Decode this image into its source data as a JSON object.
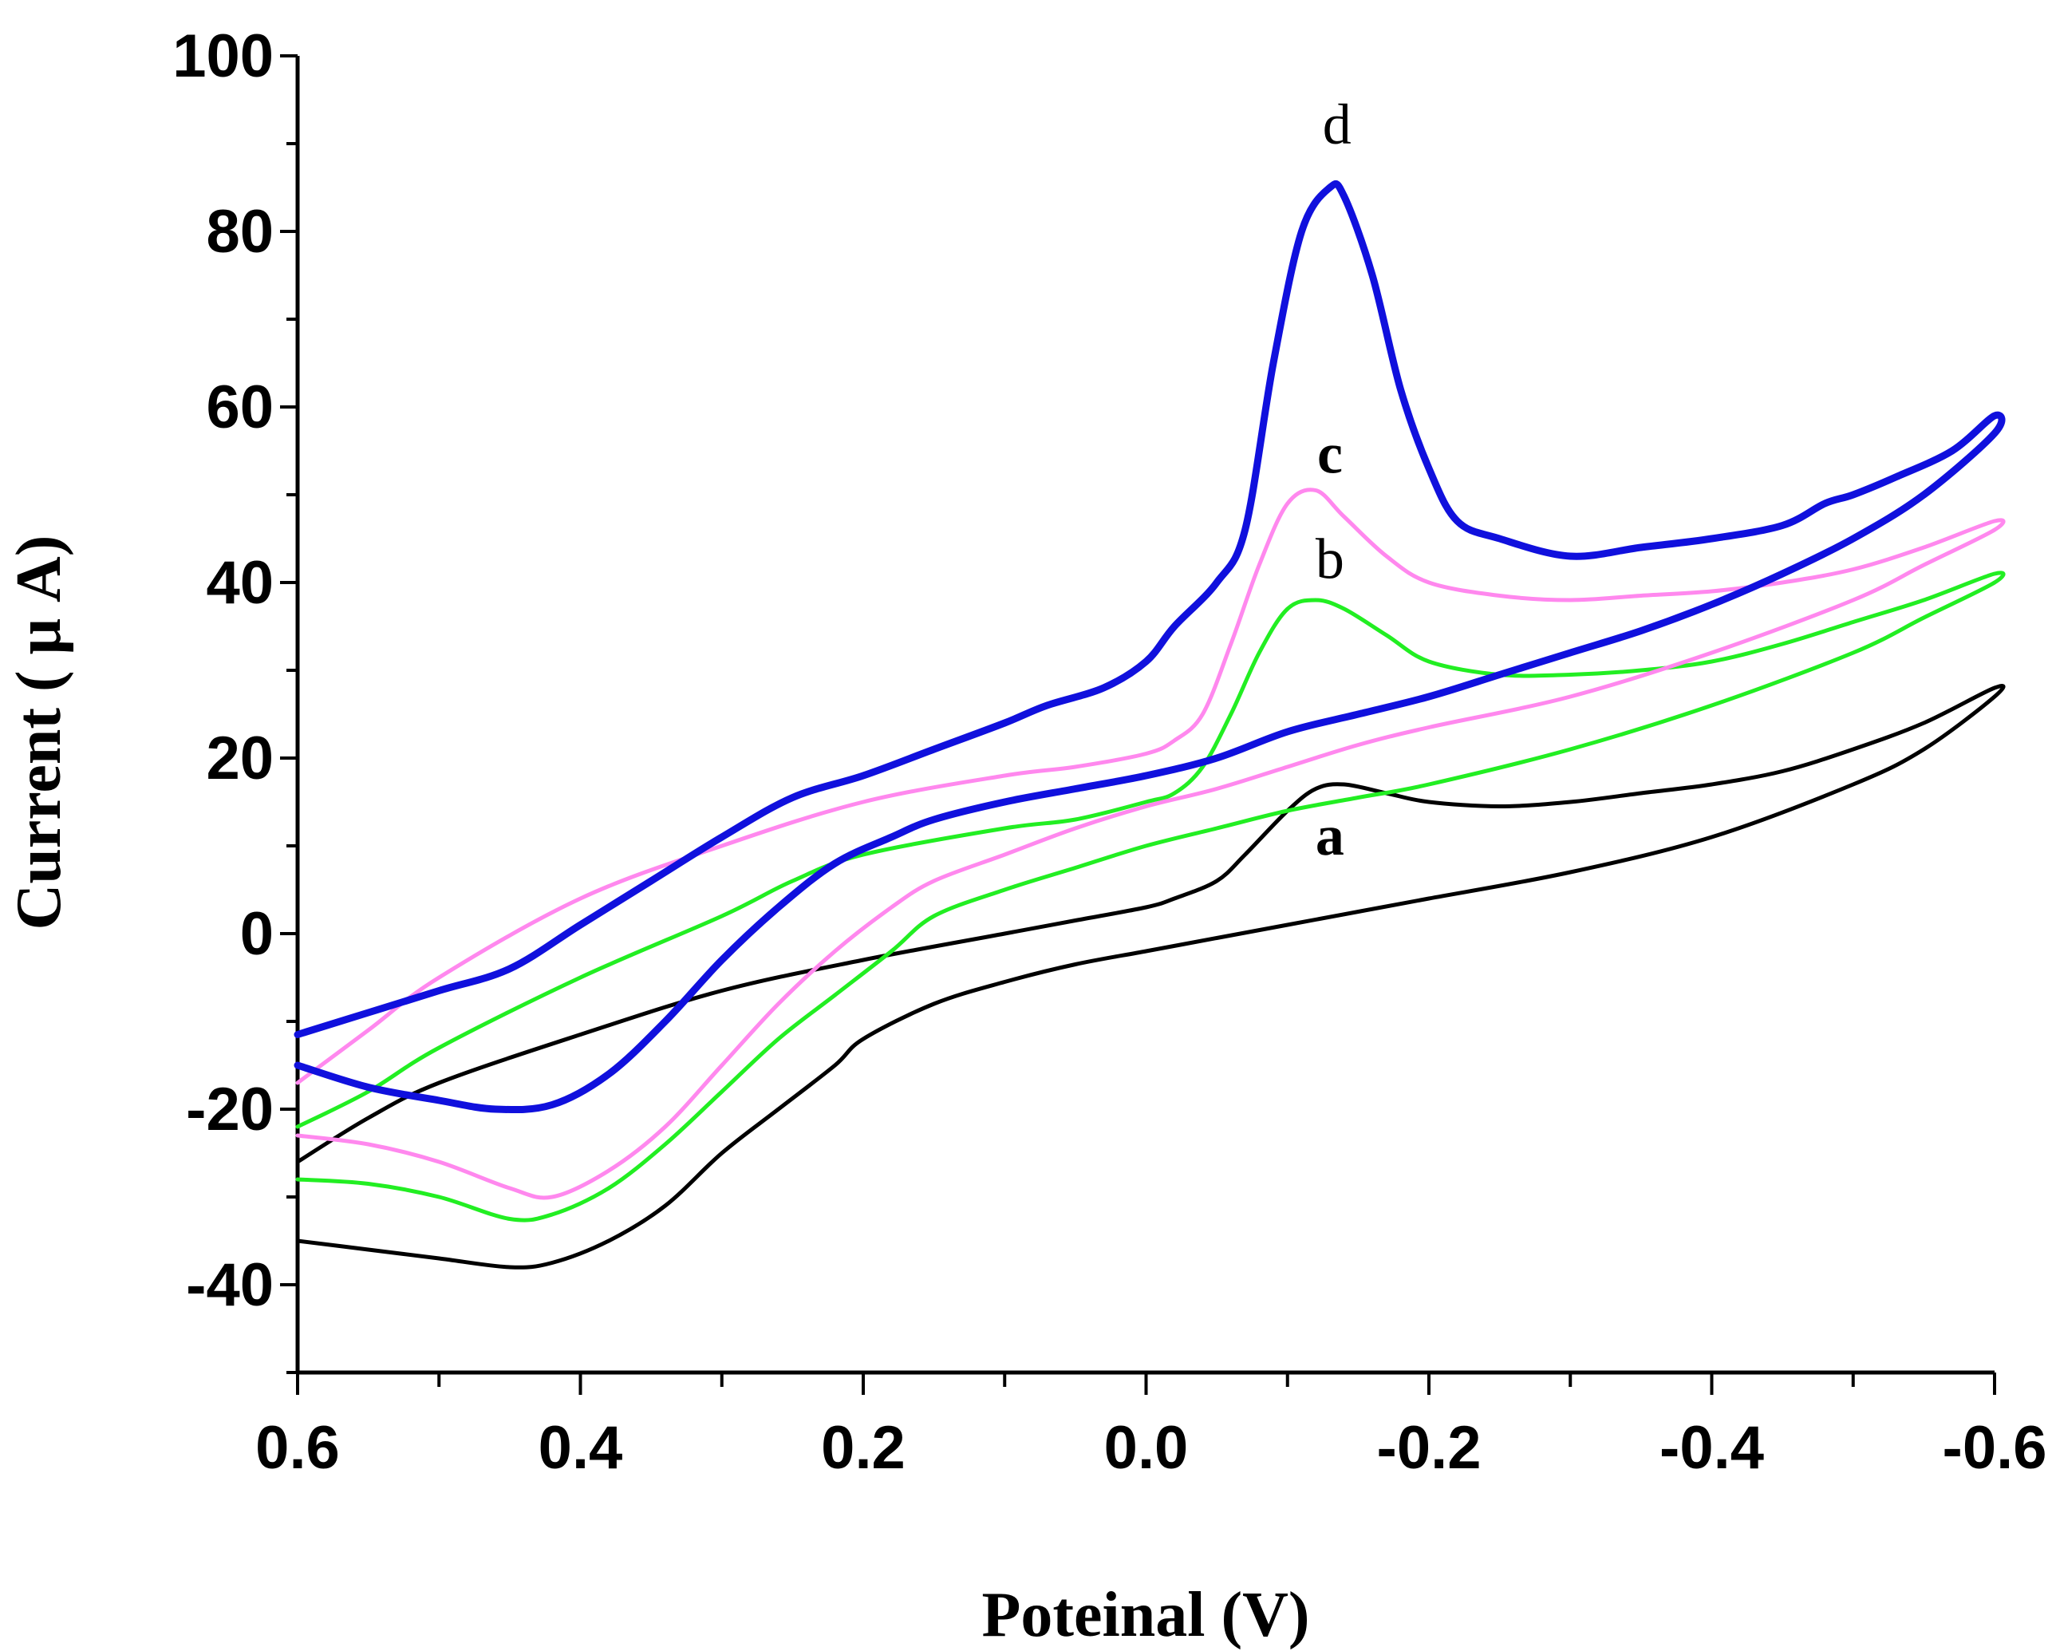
{
  "chart_data": {
    "type": "line",
    "title": "",
    "xlabel": "Poteinal (V)",
    "ylabel": "Current ( μ A)",
    "xlim": [
      0.6,
      -0.6
    ],
    "ylim": [
      -50,
      100
    ],
    "xticks": [
      0.6,
      0.4,
      0.2,
      0.0,
      -0.2,
      -0.4,
      -0.6
    ],
    "xtick_labels": [
      "0.6",
      "0.4",
      "0.2",
      "0.0",
      "-0.2",
      "-0.4",
      "-0.6"
    ],
    "yticks": [
      -40,
      -20,
      0,
      20,
      40,
      60,
      80,
      100
    ],
    "ytick_labels": [
      "-40",
      "-20",
      "0",
      "20",
      "40",
      "60",
      "80",
      "100"
    ],
    "grid": false,
    "series": [
      {
        "name": "a",
        "label": "a",
        "label_pos": [
          -0.13,
          9
        ],
        "bold_label": true,
        "color": "#000000",
        "width": 5,
        "points": [
          [
            0.6,
            -35
          ],
          [
            0.55,
            -36
          ],
          [
            0.5,
            -37
          ],
          [
            0.45,
            -38
          ],
          [
            0.42,
            -37.5
          ],
          [
            0.38,
            -35
          ],
          [
            0.34,
            -31
          ],
          [
            0.3,
            -25
          ],
          [
            0.26,
            -20
          ],
          [
            0.22,
            -15
          ],
          [
            0.2,
            -12
          ],
          [
            0.15,
            -8
          ],
          [
            0.1,
            -5.5
          ],
          [
            0.05,
            -3.5
          ],
          [
            0.0,
            -2
          ],
          [
            -0.05,
            -0.5
          ],
          [
            -0.1,
            1
          ],
          [
            -0.15,
            2.5
          ],
          [
            -0.2,
            4
          ],
          [
            -0.3,
            7
          ],
          [
            -0.4,
            11
          ],
          [
            -0.5,
            17
          ],
          [
            -0.55,
            21
          ],
          [
            -0.6,
            27
          ],
          [
            -0.6,
            28
          ],
          [
            -0.55,
            24
          ],
          [
            -0.5,
            21
          ],
          [
            -0.45,
            18.5
          ],
          [
            -0.4,
            17
          ],
          [
            -0.35,
            16
          ],
          [
            -0.3,
            15
          ],
          [
            -0.25,
            14.5
          ],
          [
            -0.2,
            15
          ],
          [
            -0.17,
            16
          ],
          [
            -0.14,
            17
          ],
          [
            -0.12,
            16.5
          ],
          [
            -0.1,
            14
          ],
          [
            -0.07,
            9
          ],
          [
            -0.05,
            6
          ],
          [
            -0.02,
            4
          ],
          [
            0.0,
            3
          ],
          [
            0.05,
            1.5
          ],
          [
            0.1,
            0
          ],
          [
            0.2,
            -3
          ],
          [
            0.3,
            -6.5
          ],
          [
            0.4,
            -11.5
          ],
          [
            0.5,
            -17
          ],
          [
            0.55,
            -21
          ],
          [
            0.6,
            -26
          ]
        ]
      },
      {
        "name": "b",
        "label": "b",
        "label_pos": [
          -0.13,
          40.5
        ],
        "bold_label": false,
        "color": "#22ee22",
        "width": 5,
        "points": [
          [
            0.6,
            -28
          ],
          [
            0.55,
            -28.5
          ],
          [
            0.5,
            -30
          ],
          [
            0.45,
            -32.5
          ],
          [
            0.42,
            -32
          ],
          [
            0.38,
            -29
          ],
          [
            0.34,
            -24
          ],
          [
            0.3,
            -18
          ],
          [
            0.26,
            -12
          ],
          [
            0.22,
            -7
          ],
          [
            0.18,
            -2
          ],
          [
            0.15,
            2
          ],
          [
            0.1,
            5
          ],
          [
            0.05,
            7.5
          ],
          [
            0.0,
            10
          ],
          [
            -0.05,
            12
          ],
          [
            -0.1,
            14
          ],
          [
            -0.15,
            15.5
          ],
          [
            -0.2,
            17
          ],
          [
            -0.3,
            21
          ],
          [
            -0.4,
            26
          ],
          [
            -0.5,
            32
          ],
          [
            -0.55,
            36
          ],
          [
            -0.6,
            40
          ],
          [
            -0.6,
            41
          ],
          [
            -0.55,
            38
          ],
          [
            -0.5,
            35.5
          ],
          [
            -0.45,
            33
          ],
          [
            -0.4,
            31
          ],
          [
            -0.35,
            30
          ],
          [
            -0.3,
            29.5
          ],
          [
            -0.25,
            29.5
          ],
          [
            -0.2,
            31
          ],
          [
            -0.17,
            34
          ],
          [
            -0.14,
            37
          ],
          [
            -0.12,
            38
          ],
          [
            -0.1,
            37
          ],
          [
            -0.08,
            32
          ],
          [
            -0.06,
            25
          ],
          [
            -0.04,
            19
          ],
          [
            -0.02,
            16
          ],
          [
            0.0,
            15
          ],
          [
            0.05,
            13
          ],
          [
            0.1,
            12
          ],
          [
            0.2,
            9
          ],
          [
            0.25,
            6
          ],
          [
            0.3,
            2
          ],
          [
            0.4,
            -5
          ],
          [
            0.5,
            -13
          ],
          [
            0.55,
            -18
          ],
          [
            0.6,
            -22
          ]
        ]
      },
      {
        "name": "c",
        "label": "c",
        "label_pos": [
          -0.13,
          52.5
        ],
        "bold_label": true,
        "color": "#ff88ee",
        "width": 5,
        "points": [
          [
            0.6,
            -23
          ],
          [
            0.55,
            -24
          ],
          [
            0.5,
            -26
          ],
          [
            0.45,
            -29
          ],
          [
            0.42,
            -30
          ],
          [
            0.38,
            -27
          ],
          [
            0.34,
            -22
          ],
          [
            0.3,
            -15
          ],
          [
            0.26,
            -8
          ],
          [
            0.22,
            -2
          ],
          [
            0.18,
            3
          ],
          [
            0.15,
            6
          ],
          [
            0.1,
            9
          ],
          [
            0.05,
            12
          ],
          [
            0.0,
            14.5
          ],
          [
            -0.05,
            16.5
          ],
          [
            -0.1,
            19
          ],
          [
            -0.15,
            21.5
          ],
          [
            -0.2,
            23.5
          ],
          [
            -0.3,
            27
          ],
          [
            -0.4,
            32
          ],
          [
            -0.5,
            38
          ],
          [
            -0.55,
            42
          ],
          [
            -0.6,
            46
          ],
          [
            -0.6,
            47
          ],
          [
            -0.55,
            44
          ],
          [
            -0.5,
            41.5
          ],
          [
            -0.45,
            40
          ],
          [
            -0.4,
            39
          ],
          [
            -0.35,
            38.5
          ],
          [
            -0.3,
            38
          ],
          [
            -0.25,
            38.5
          ],
          [
            -0.2,
            40
          ],
          [
            -0.17,
            43
          ],
          [
            -0.14,
            47.5
          ],
          [
            -0.12,
            50.5
          ],
          [
            -0.1,
            49
          ],
          [
            -0.08,
            42
          ],
          [
            -0.06,
            33
          ],
          [
            -0.04,
            25
          ],
          [
            -0.02,
            22
          ],
          [
            0.0,
            20.5
          ],
          [
            0.05,
            19
          ],
          [
            0.1,
            18
          ],
          [
            0.2,
            15
          ],
          [
            0.3,
            10
          ],
          [
            0.4,
            4
          ],
          [
            0.5,
            -5
          ],
          [
            0.55,
            -11
          ],
          [
            0.6,
            -17
          ]
        ]
      },
      {
        "name": "d",
        "label": "d",
        "label_pos": [
          -0.135,
          90
        ],
        "bold_label": false,
        "color": "#1010dd",
        "width": 9,
        "points": [
          [
            0.6,
            -15
          ],
          [
            0.55,
            -17.5
          ],
          [
            0.5,
            -19
          ],
          [
            0.46,
            -20
          ],
          [
            0.42,
            -19.5
          ],
          [
            0.38,
            -16
          ],
          [
            0.34,
            -10
          ],
          [
            0.3,
            -3
          ],
          [
            0.26,
            3
          ],
          [
            0.22,
            8
          ],
          [
            0.18,
            11
          ],
          [
            0.15,
            13
          ],
          [
            0.1,
            15
          ],
          [
            0.05,
            16.5
          ],
          [
            0.0,
            18
          ],
          [
            -0.05,
            20
          ],
          [
            -0.1,
            23
          ],
          [
            -0.15,
            25
          ],
          [
            -0.2,
            27
          ],
          [
            -0.25,
            29.5
          ],
          [
            -0.3,
            32
          ],
          [
            -0.35,
            34.5
          ],
          [
            -0.4,
            37.5
          ],
          [
            -0.45,
            41
          ],
          [
            -0.5,
            45
          ],
          [
            -0.55,
            50
          ],
          [
            -0.6,
            57
          ],
          [
            -0.6,
            59
          ],
          [
            -0.57,
            55
          ],
          [
            -0.53,
            52
          ],
          [
            -0.5,
            50
          ],
          [
            -0.48,
            49
          ],
          [
            -0.45,
            46.5
          ],
          [
            -0.4,
            45
          ],
          [
            -0.35,
            44
          ],
          [
            -0.3,
            43
          ],
          [
            -0.25,
            45
          ],
          [
            -0.22,
            47
          ],
          [
            -0.2,
            53
          ],
          [
            -0.18,
            62
          ],
          [
            -0.16,
            75
          ],
          [
            -0.14,
            84
          ],
          [
            -0.13,
            85
          ],
          [
            -0.11,
            80
          ],
          [
            -0.09,
            65
          ],
          [
            -0.07,
            46
          ],
          [
            -0.05,
            40
          ],
          [
            -0.02,
            35
          ],
          [
            0.0,
            31
          ],
          [
            0.03,
            28
          ],
          [
            0.07,
            26
          ],
          [
            0.1,
            24
          ],
          [
            0.15,
            21
          ],
          [
            0.2,
            18
          ],
          [
            0.25,
            15.5
          ],
          [
            0.3,
            11
          ],
          [
            0.35,
            6
          ],
          [
            0.4,
            1
          ],
          [
            0.45,
            -4
          ],
          [
            0.5,
            -6.5
          ],
          [
            0.55,
            -9
          ],
          [
            0.6,
            -11.5
          ]
        ]
      }
    ]
  }
}
